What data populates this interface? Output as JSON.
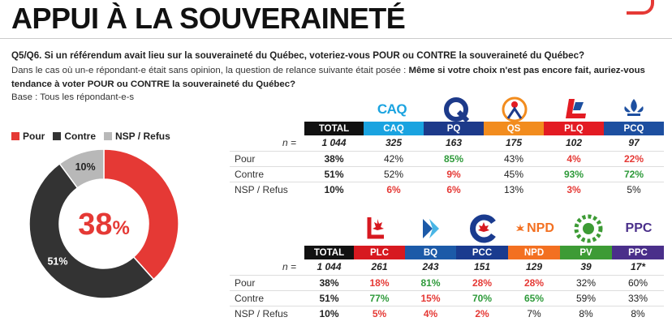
{
  "title": "APPUI À LA SOUVERAINETÉ",
  "question": "Q5/Q6. Si un référendum avait lieu sur la souveraineté du Québec, voteriez-vous POUR ou CONTRE la souveraineté du Québec?",
  "note_prefix": "Dans le cas où un-e répondant-e était sans opinion, la question de relance suivante était posée : ",
  "note_bold": "Même si votre choix n'est pas encore fait, auriez-vous tendance à voter POUR ou CONTRE la souveraineté du Québec?",
  "base": "Base : Tous les répondant-e-s",
  "colors": {
    "pour": "#e53935",
    "contre": "#333333",
    "nsp": "#b8b8b8",
    "caq": "#1aa3e0",
    "pq": "#1d3a8a",
    "qs": "#f28c1e",
    "plq": "#e31b23",
    "pcq": "#1d4fa0",
    "plc": "#d71920",
    "bq": "#1c5aa8",
    "pcc": "#1a3b8f",
    "npd": "#f37021",
    "pv": "#3d9b35",
    "ppc": "#4a2f8a"
  },
  "chart_data": [
    {
      "type": "pie",
      "legend": [
        "Pour",
        "Contre",
        "NSP / Refus"
      ],
      "values": [
        38,
        51,
        10
      ],
      "labels": [
        "38%",
        "51%",
        "10%"
      ],
      "center_number": "38",
      "center_unit": "%"
    },
    {
      "type": "table",
      "n_label": "n =",
      "columns": [
        "TOTAL",
        "CAQ",
        "PQ",
        "QS",
        "PLQ",
        "PCQ"
      ],
      "n": [
        "1 044",
        "325",
        "163",
        "175",
        "102",
        "97"
      ],
      "rows": [
        {
          "label": "Pour",
          "values": [
            "38%",
            "42%",
            "85%",
            "43%",
            "4%",
            "22%"
          ]
        },
        {
          "label": "Contre",
          "values": [
            "51%",
            "52%",
            "9%",
            "45%",
            "93%",
            "72%"
          ]
        },
        {
          "label": "NSP / Refus",
          "values": [
            "10%",
            "6%",
            "6%",
            "13%",
            "3%",
            "5%"
          ]
        }
      ]
    },
    {
      "type": "table",
      "n_label": "n =",
      "columns": [
        "TOTAL",
        "PLC",
        "BQ",
        "PCC",
        "NPD",
        "PV",
        "PPC"
      ],
      "n": [
        "1 044",
        "261",
        "243",
        "151",
        "129",
        "39",
        "17*"
      ],
      "rows": [
        {
          "label": "Pour",
          "values": [
            "38%",
            "18%",
            "81%",
            "28%",
            "28%",
            "32%",
            "60%"
          ]
        },
        {
          "label": "Contre",
          "values": [
            "51%",
            "77%",
            "15%",
            "70%",
            "65%",
            "59%",
            "33%"
          ]
        },
        {
          "label": "NSP / Refus",
          "values": [
            "10%",
            "5%",
            "4%",
            "2%",
            "7%",
            "8%",
            "8%"
          ]
        }
      ]
    }
  ],
  "logos": {
    "caq": "CAQ",
    "npd": "NPD",
    "ppc": "PPC"
  }
}
